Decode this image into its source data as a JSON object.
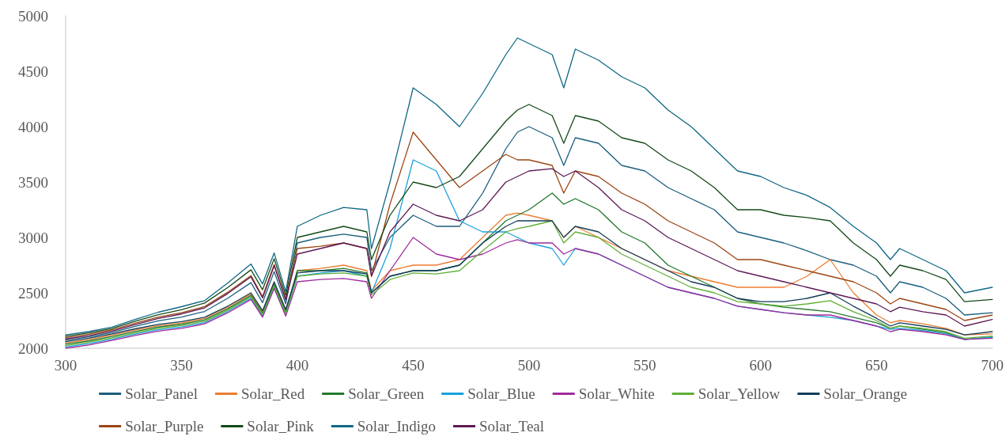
{
  "chart_data": {
    "type": "line",
    "xlim": [
      300,
      700
    ],
    "xticks": [
      300,
      350,
      400,
      450,
      500,
      550,
      600,
      650,
      700
    ],
    "ylim": [
      2000,
      5000
    ],
    "yticks": [
      2000,
      2500,
      3000,
      3500,
      4000,
      4500,
      5000
    ],
    "grid": false,
    "legend": "bottom",
    "marker": "none",
    "line_style": "solid",
    "x": [
      300,
      310,
      320,
      330,
      340,
      350,
      360,
      370,
      380,
      385,
      390,
      395,
      400,
      410,
      420,
      430,
      432,
      440,
      450,
      460,
      470,
      480,
      490,
      495,
      500,
      510,
      515,
      520,
      530,
      540,
      550,
      560,
      570,
      580,
      590,
      600,
      610,
      620,
      630,
      640,
      650,
      656,
      660,
      670,
      680,
      688,
      700
    ],
    "series": [
      {
        "name": "Solar_Panel",
        "color": "#1b5e7e",
        "values": [
          2072,
          2102,
          2142,
          2197,
          2247,
          2282,
          2332,
          2452,
          2592,
          2412,
          2692,
          2402,
          2950,
          3000,
          3030,
          3000,
          2700,
          3000,
          3200,
          3100,
          3100,
          3400,
          3800,
          3950,
          4000,
          3900,
          3650,
          3900,
          3850,
          3650,
          3600,
          3450,
          3350,
          3250,
          3050,
          3000,
          2950,
          2880,
          2800,
          2750,
          2650,
          2500,
          2600,
          2550,
          2450,
          2300,
          2320
        ]
      },
      {
        "name": "Solar_Red",
        "color": "#ed7d31",
        "values": [
          2048,
          2078,
          2118,
          2163,
          2203,
          2228,
          2268,
          2368,
          2488,
          2328,
          2588,
          2338,
          2700,
          2720,
          2750,
          2700,
          2520,
          2700,
          2750,
          2750,
          2800,
          3000,
          3200,
          3220,
          3200,
          3150,
          3000,
          3100,
          3000,
          2900,
          2800,
          2700,
          2650,
          2600,
          2550,
          2550,
          2550,
          2650,
          2800,
          2500,
          2300,
          2230,
          2250,
          2220,
          2180,
          2120,
          2130
        ]
      },
      {
        "name": "Solar_Green",
        "color": "#237a2e",
        "values": [
          2036,
          2066,
          2106,
          2151,
          2191,
          2216,
          2256,
          2356,
          2476,
          2316,
          2576,
          2326,
          2700,
          2700,
          2720,
          2680,
          2500,
          2650,
          2700,
          2700,
          2750,
          2950,
          3150,
          3200,
          3250,
          3400,
          3300,
          3350,
          3250,
          3050,
          2950,
          2750,
          2650,
          2550,
          2450,
          2400,
          2370,
          2350,
          2330,
          2280,
          2230,
          2180,
          2200,
          2170,
          2140,
          2080,
          2100
        ]
      },
      {
        "name": "Solar_Blue",
        "color": "#1ba1dc",
        "values": [
          2012,
          2042,
          2082,
          2127,
          2167,
          2192,
          2232,
          2332,
          2452,
          2292,
          2552,
          2302,
          2650,
          2680,
          2700,
          2650,
          2500,
          2900,
          3700,
          3600,
          3150,
          3050,
          3050,
          3000,
          2950,
          2900,
          2750,
          2900,
          2850,
          2750,
          2650,
          2550,
          2500,
          2450,
          2380,
          2350,
          2320,
          2300,
          2280,
          2250,
          2200,
          2170,
          2180,
          2160,
          2130,
          2080,
          2100
        ]
      },
      {
        "name": "Solar_White",
        "color": "#a02b9c",
        "values": [
          2000,
          2030,
          2070,
          2115,
          2155,
          2180,
          2220,
          2320,
          2440,
          2280,
          2540,
          2290,
          2600,
          2620,
          2630,
          2600,
          2450,
          2700,
          3000,
          2850,
          2800,
          2850,
          2950,
          2980,
          2950,
          2950,
          2850,
          2900,
          2850,
          2750,
          2650,
          2550,
          2500,
          2450,
          2380,
          2350,
          2320,
          2300,
          2300,
          2250,
          2200,
          2150,
          2170,
          2150,
          2120,
          2080,
          2090
        ]
      },
      {
        "name": "Solar_Yellow",
        "color": "#5fae38",
        "values": [
          2024,
          2054,
          2094,
          2139,
          2179,
          2204,
          2244,
          2344,
          2464,
          2304,
          2564,
          2314,
          2650,
          2670,
          2680,
          2650,
          2480,
          2620,
          2680,
          2670,
          2700,
          2880,
          3050,
          3080,
          3100,
          3150,
          2950,
          3050,
          3000,
          2850,
          2750,
          2650,
          2550,
          2500,
          2420,
          2400,
          2380,
          2400,
          2430,
          2330,
          2250,
          2180,
          2200,
          2180,
          2150,
          2090,
          2110
        ]
      },
      {
        "name": "Solar_Orange",
        "color": "#123c58",
        "values": [
          2060,
          2090,
          2130,
          2175,
          2215,
          2240,
          2280,
          2380,
          2500,
          2340,
          2600,
          2350,
          2680,
          2700,
          2700,
          2670,
          2500,
          2650,
          2700,
          2700,
          2750,
          2950,
          3100,
          3150,
          3150,
          3150,
          3000,
          3100,
          3050,
          2900,
          2800,
          2700,
          2600,
          2550,
          2450,
          2420,
          2420,
          2450,
          2500,
          2380,
          2270,
          2200,
          2230,
          2200,
          2170,
          2120,
          2150
        ]
      },
      {
        "name": "Solar_Purple",
        "color": "#9c4514",
        "values": [
          2096,
          2126,
          2166,
          2226,
          2281,
          2321,
          2376,
          2506,
          2656,
          2466,
          2756,
          2446,
          2900,
          2920,
          2950,
          2900,
          2650,
          3300,
          3950,
          3700,
          3450,
          3600,
          3750,
          3700,
          3700,
          3650,
          3400,
          3600,
          3550,
          3400,
          3300,
          3150,
          3050,
          2950,
          2800,
          2800,
          2750,
          2700,
          2650,
          2600,
          2500,
          2400,
          2450,
          2400,
          2350,
          2250,
          2300
        ]
      },
      {
        "name": "Solar_Pink",
        "color": "#154a19",
        "values": [
          2108,
          2138,
          2178,
          2243,
          2303,
          2348,
          2408,
          2548,
          2708,
          2528,
          2808,
          2478,
          3000,
          3050,
          3100,
          3050,
          2800,
          3200,
          3500,
          3450,
          3550,
          3800,
          4050,
          4150,
          4200,
          4100,
          3850,
          4100,
          4050,
          3900,
          3850,
          3700,
          3600,
          3450,
          3250,
          3250,
          3200,
          3180,
          3150,
          2950,
          2800,
          2650,
          2750,
          2700,
          2620,
          2420,
          2440
        ]
      },
      {
        "name": "Solar_Indigo",
        "color": "#106885",
        "values": [
          2120,
          2150,
          2190,
          2260,
          2325,
          2375,
          2430,
          2590,
          2760,
          2580,
          2860,
          2510,
          3100,
          3200,
          3270,
          3250,
          2900,
          3500,
          4350,
          4200,
          4000,
          4300,
          4650,
          4800,
          4750,
          4650,
          4350,
          4700,
          4600,
          4450,
          4350,
          4150,
          4000,
          3800,
          3600,
          3550,
          3450,
          3380,
          3270,
          3100,
          2950,
          2800,
          2900,
          2800,
          2700,
          2500,
          2550
        ]
      },
      {
        "name": "Solar_Teal",
        "color": "#5e1a55",
        "values": [
          2084,
          2114,
          2154,
          2214,
          2269,
          2309,
          2364,
          2494,
          2644,
          2454,
          2744,
          2434,
          2850,
          2900,
          2950,
          2900,
          2650,
          3050,
          3300,
          3200,
          3150,
          3250,
          3500,
          3550,
          3600,
          3620,
          3550,
          3600,
          3450,
          3250,
          3150,
          3000,
          2900,
          2800,
          2700,
          2650,
          2600,
          2550,
          2500,
          2450,
          2400,
          2330,
          2370,
          2330,
          2300,
          2200,
          2260
        ]
      }
    ]
  }
}
